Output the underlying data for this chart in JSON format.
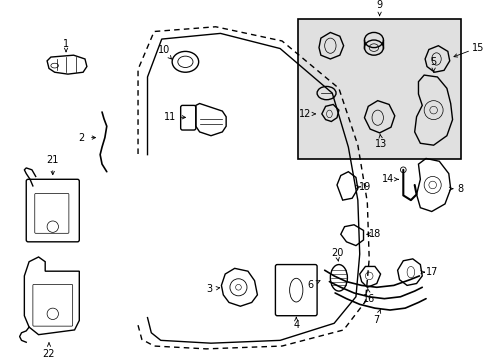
{
  "bg_color": "#ffffff",
  "line_color": "#000000",
  "box_bg": "#e0e0e0",
  "figsize": [
    4.89,
    3.6
  ],
  "dpi": 100
}
